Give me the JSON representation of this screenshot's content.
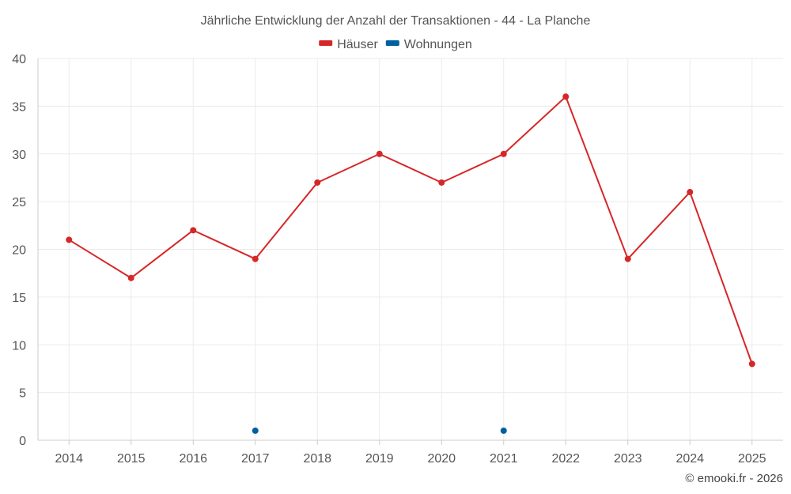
{
  "chart_data": {
    "type": "line",
    "title": "Jährliche Entwicklung der Anzahl der Transaktionen - 44 - La Planche",
    "categories": [
      "2014",
      "2015",
      "2016",
      "2017",
      "2018",
      "2019",
      "2020",
      "2021",
      "2022",
      "2023",
      "2024",
      "2025"
    ],
    "series": [
      {
        "name": "Häuser",
        "color": "#d62728",
        "style": "line",
        "values": [
          21,
          17,
          22,
          19,
          27,
          30,
          27,
          30,
          36,
          19,
          26,
          8
        ]
      },
      {
        "name": "Wohnungen",
        "color": "#005f9e",
        "style": "points",
        "values": [
          null,
          null,
          null,
          1,
          null,
          null,
          null,
          1,
          null,
          null,
          null,
          null
        ]
      }
    ],
    "ylim": [
      0,
      40
    ],
    "yticks": [
      0,
      5,
      10,
      15,
      20,
      25,
      30,
      35,
      40
    ],
    "grid": true,
    "legend_position": "top-center",
    "xlabel": "",
    "ylabel": ""
  },
  "copyright": "© emooki.fr - 2026"
}
